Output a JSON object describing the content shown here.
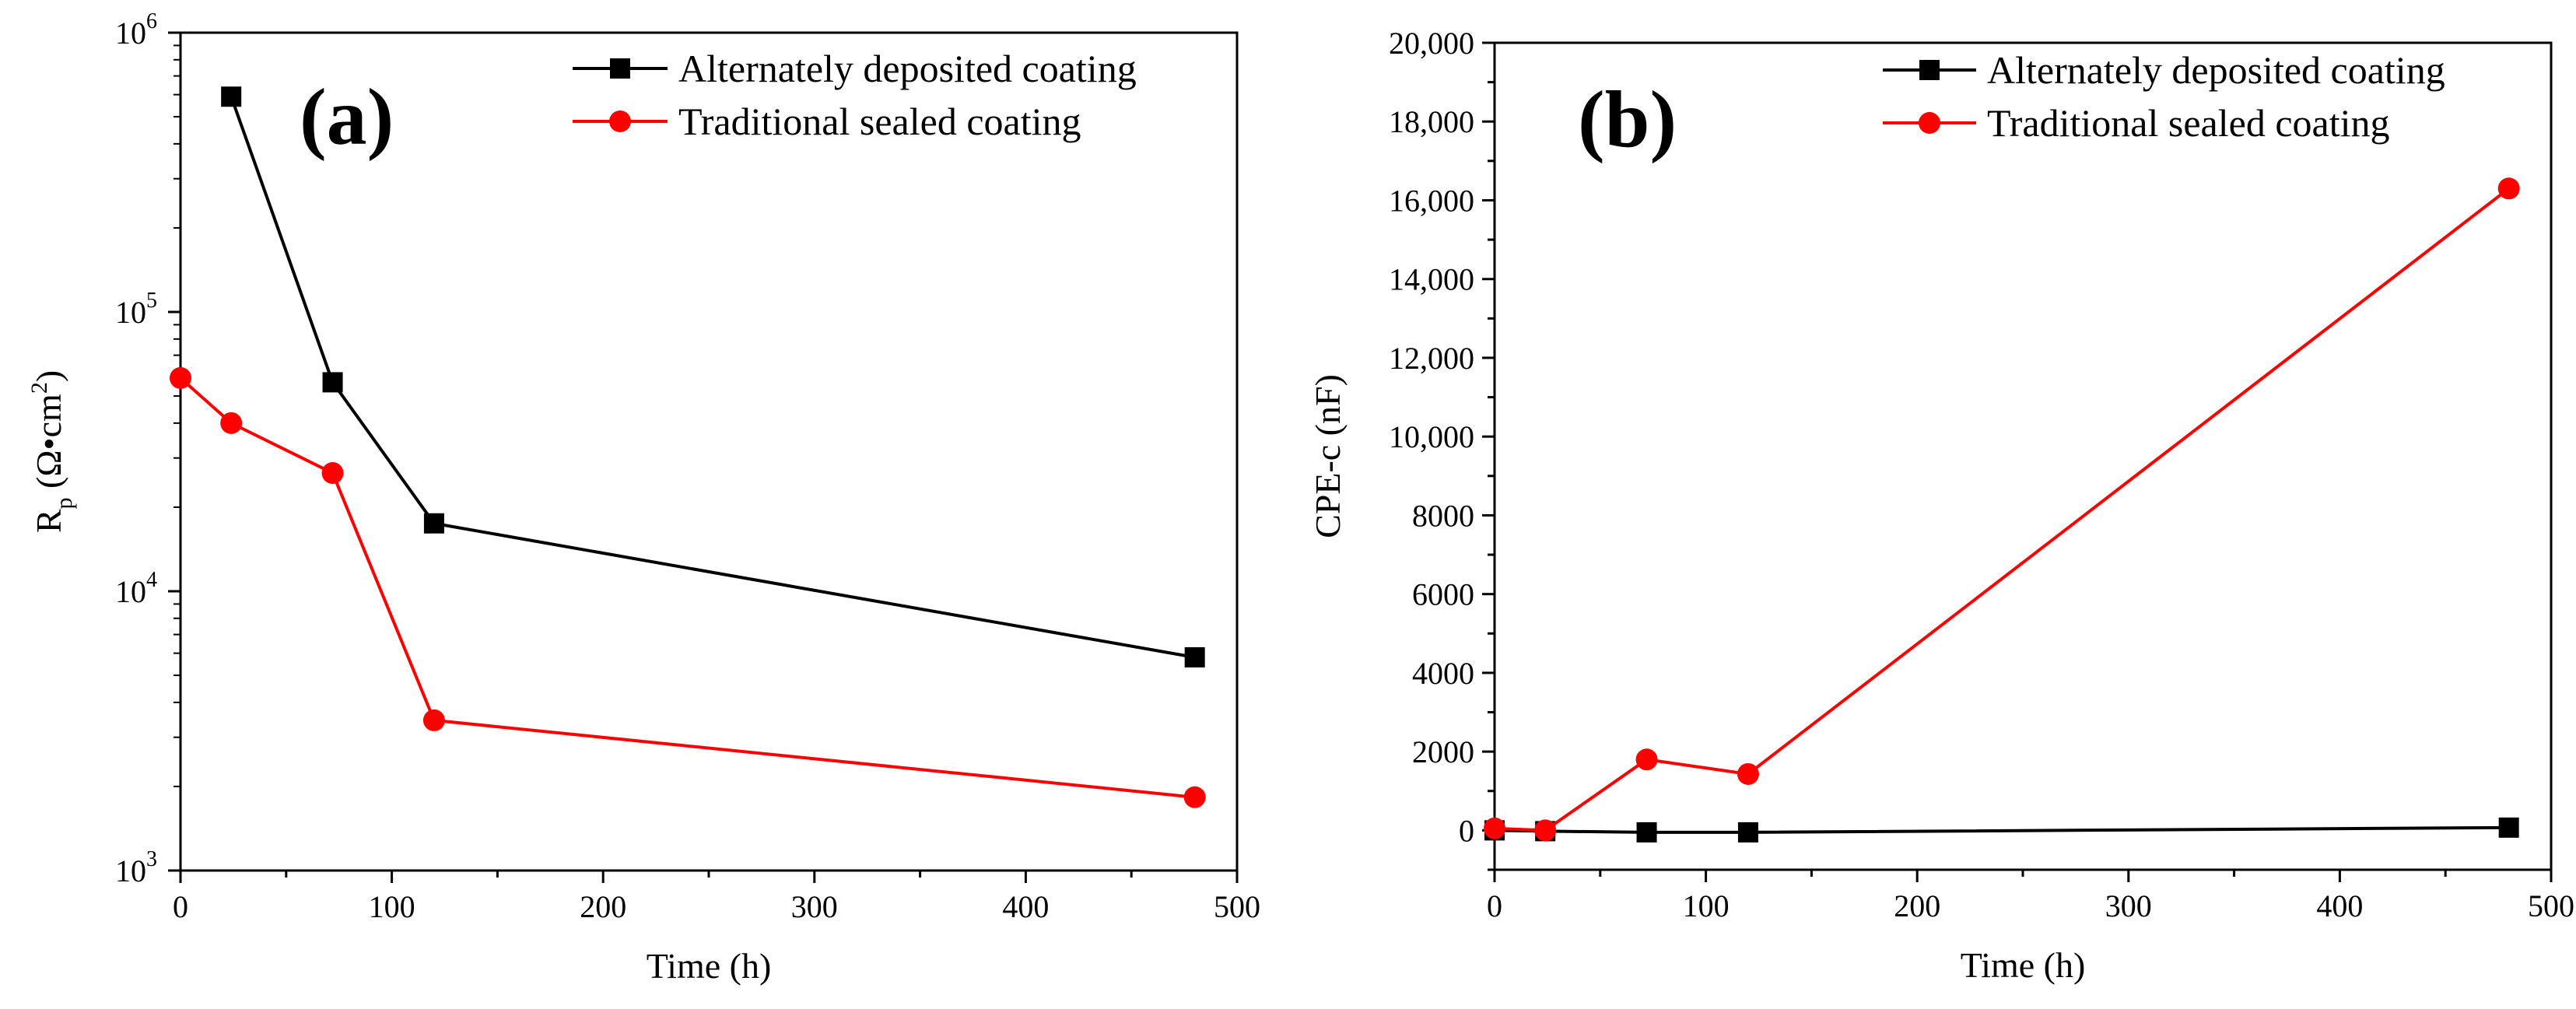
{
  "chart_data": [
    {
      "panel": "(a)",
      "type": "line",
      "x_scale": "linear",
      "y_scale": "log",
      "xlabel": "Time (h)",
      "ylabel": "R",
      "ylabel_sub": "p",
      "ylabel_unit": " (Ω•cm",
      "ylabel_sup": "2",
      "ylabel_end": ")",
      "xlim": [
        0,
        500
      ],
      "ylim": [
        1000,
        1000000
      ],
      "x_ticks": [
        0,
        100,
        200,
        300,
        400,
        500
      ],
      "x_tick_labels": [
        "0",
        "100",
        "200",
        "300",
        "400",
        "500"
      ],
      "y_ticks": [
        1000,
        10000,
        100000,
        1000000
      ],
      "y_tick_labels": [
        {
          "base": "10",
          "exp": "3"
        },
        {
          "base": "10",
          "exp": "4"
        },
        {
          "base": "10",
          "exp": "5"
        },
        {
          "base": "10",
          "exp": "6"
        }
      ],
      "legend_position": "top-right",
      "series": [
        {
          "name": "Alternately deposited coating",
          "color": "#000000",
          "marker": "square",
          "x": [
            24,
            72,
            120,
            480
          ],
          "y": [
            590000,
            56000,
            17500,
            5800
          ]
        },
        {
          "name": "Traditional sealed coating",
          "color": "#ff0000",
          "marker": "circle",
          "x": [
            0,
            24,
            72,
            120,
            480
          ],
          "y": [
            58000,
            40000,
            26500,
            3450,
            1830
          ]
        }
      ]
    },
    {
      "panel": "(b)",
      "type": "line",
      "x_scale": "linear",
      "y_scale": "linear",
      "xlabel": "Time (h)",
      "ylabel": "CPE-c (nF)",
      "xlim": [
        0,
        500
      ],
      "ylim": [
        -1000,
        20000
      ],
      "x_ticks": [
        0,
        100,
        200,
        300,
        400,
        500
      ],
      "x_tick_labels": [
        "0",
        "100",
        "200",
        "300",
        "400",
        "500"
      ],
      "y_ticks": [
        0,
        2000,
        4000,
        6000,
        8000,
        10000,
        12000,
        14000,
        16000,
        18000,
        20000
      ],
      "y_tick_labels": [
        "0",
        "2000",
        "4000",
        "6000",
        "8000",
        "10,000",
        "12,000",
        "14,000",
        "16,000",
        "18,000",
        "20,000"
      ],
      "legend_position": "top-right",
      "series": [
        {
          "name": "Alternately deposited coating",
          "color": "#000000",
          "marker": "square",
          "x": [
            0,
            24,
            72,
            120,
            480
          ],
          "y": [
            0,
            -20,
            -50,
            -50,
            70
          ]
        },
        {
          "name": "Traditional sealed coating",
          "color": "#ff0000",
          "marker": "circle",
          "x": [
            0,
            24,
            72,
            120,
            480
          ],
          "y": [
            50,
            0,
            1800,
            1430,
            16300
          ]
        }
      ]
    }
  ]
}
